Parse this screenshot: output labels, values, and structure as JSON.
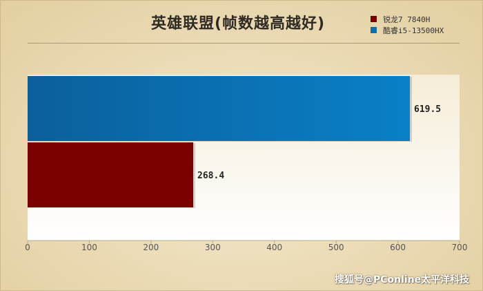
{
  "chart_data": {
    "type": "bar",
    "orientation": "horizontal",
    "title": "英雄联盟(帧数越高越好)",
    "xlabel": "",
    "ylabel": "",
    "xlim": [
      0,
      700
    ],
    "xticks": [
      0,
      100,
      200,
      300,
      400,
      500,
      600,
      700
    ],
    "series": [
      {
        "name": "锐龙7 7840H",
        "value": 268.4,
        "label": "268.4",
        "color": "#7b0000"
      },
      {
        "name": "酷睿i5-13500HX",
        "value": 619.5,
        "label": "619.5",
        "color": "#0a70b2"
      }
    ],
    "legend_position": "top-right",
    "grid": false
  },
  "watermark": "搜狐号@PConline太平洋科技"
}
